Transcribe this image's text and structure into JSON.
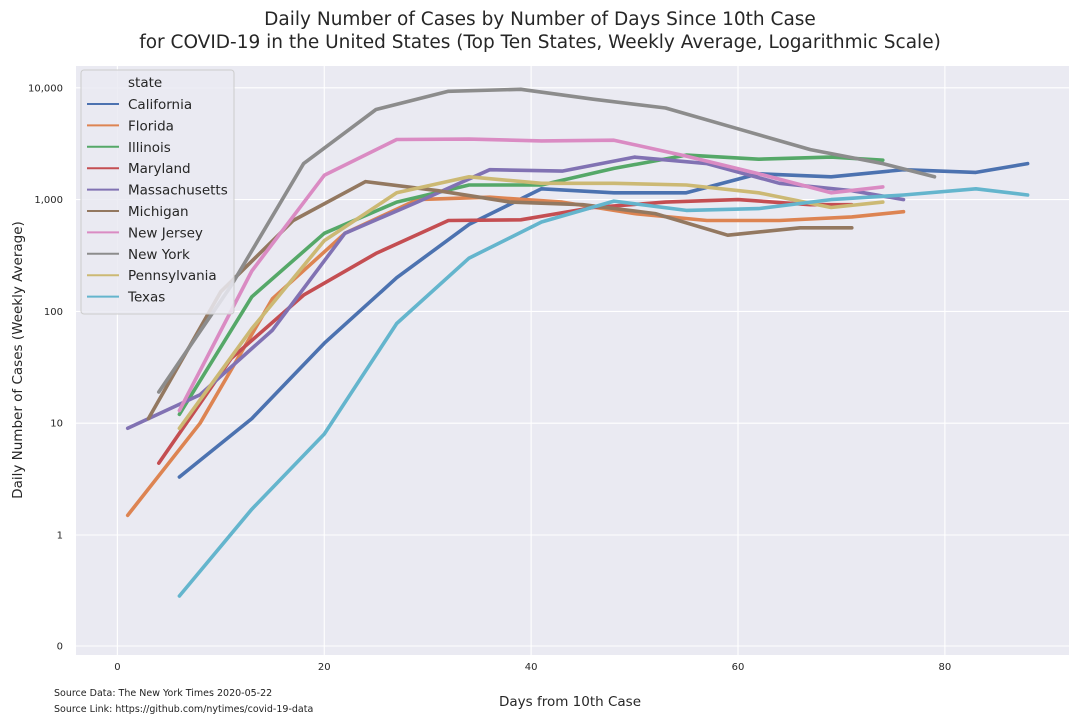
{
  "chart_data": {
    "type": "line",
    "title_line1": "Daily Number of Cases by Number of Days Since 10th Case",
    "title_line2": "for COVID-19 in the United States (Top Ten States, Weekly Average, Logarithmic Scale)",
    "xlabel": "Days from 10th Case",
    "ylabel": "Daily Number of Cases (Weekly Average)",
    "xlim": [
      -4,
      92
    ],
    "ylim": [
      0.08,
      16000
    ],
    "yscale": "symlog",
    "xticks": [
      0,
      20,
      40,
      60,
      80
    ],
    "yticks": [
      {
        "value": 0,
        "label": "0"
      },
      {
        "value": 1,
        "label": "1"
      },
      {
        "value": 10,
        "label": "10"
      },
      {
        "value": 100,
        "label": "100"
      },
      {
        "value": 1000,
        "label": "1,000"
      },
      {
        "value": 10000,
        "label": "10,000"
      }
    ],
    "legend_title": "state",
    "legend_position": "upper-left",
    "series": [
      {
        "name": "California",
        "color": "#4c72b0",
        "points": [
          [
            6,
            3.3
          ],
          [
            13,
            11
          ],
          [
            20,
            52
          ],
          [
            27,
            200
          ],
          [
            34,
            600
          ],
          [
            41,
            1250
          ],
          [
            48,
            1150
          ],
          [
            55,
            1150
          ],
          [
            62,
            1700
          ],
          [
            69,
            1600
          ],
          [
            76,
            1850
          ],
          [
            83,
            1750
          ],
          [
            88,
            2100
          ]
        ]
      },
      {
        "name": "Florida",
        "color": "#dd8452",
        "points": [
          [
            1,
            1.5
          ],
          [
            8,
            10
          ],
          [
            15,
            130
          ],
          [
            22,
            500
          ],
          [
            29,
            1000
          ],
          [
            36,
            1050
          ],
          [
            43,
            950
          ],
          [
            50,
            750
          ],
          [
            57,
            650
          ],
          [
            64,
            650
          ],
          [
            71,
            700
          ],
          [
            76,
            780
          ]
        ]
      },
      {
        "name": "Illinois",
        "color": "#55a868",
        "points": [
          [
            6,
            12
          ],
          [
            13,
            135
          ],
          [
            20,
            500
          ],
          [
            27,
            950
          ],
          [
            34,
            1350
          ],
          [
            41,
            1350
          ],
          [
            48,
            1900
          ],
          [
            55,
            2500
          ],
          [
            62,
            2300
          ],
          [
            69,
            2400
          ],
          [
            74,
            2250
          ]
        ]
      },
      {
        "name": "Maryland",
        "color": "#c44e52",
        "points": [
          [
            4,
            4.4
          ],
          [
            11,
            38
          ],
          [
            18,
            140
          ],
          [
            25,
            330
          ],
          [
            32,
            650
          ],
          [
            39,
            660
          ],
          [
            46,
            850
          ],
          [
            53,
            950
          ],
          [
            60,
            1000
          ],
          [
            67,
            900
          ],
          [
            71,
            900
          ]
        ]
      },
      {
        "name": "Massachusetts",
        "color": "#8172b3",
        "points": [
          [
            1,
            9
          ],
          [
            8,
            18
          ],
          [
            15,
            68
          ],
          [
            22,
            500
          ],
          [
            29,
            950
          ],
          [
            36,
            1850
          ],
          [
            43,
            1800
          ],
          [
            50,
            2400
          ],
          [
            57,
            2100
          ],
          [
            64,
            1400
          ],
          [
            71,
            1200
          ],
          [
            76,
            1000
          ]
        ]
      },
      {
        "name": "Michigan",
        "color": "#937860",
        "points": [
          [
            3,
            11
          ],
          [
            10,
            150
          ],
          [
            17,
            650
          ],
          [
            24,
            1450
          ],
          [
            31,
            1200
          ],
          [
            38,
            950
          ],
          [
            45,
            900
          ],
          [
            52,
            750
          ],
          [
            59,
            480
          ],
          [
            66,
            560
          ],
          [
            71,
            560
          ]
        ]
      },
      {
        "name": "New Jersey",
        "color": "#da8bc3",
        "points": [
          [
            6,
            13
          ],
          [
            13,
            230
          ],
          [
            20,
            1650
          ],
          [
            27,
            3450
          ],
          [
            34,
            3480
          ],
          [
            41,
            3350
          ],
          [
            48,
            3400
          ],
          [
            55,
            2450
          ],
          [
            62,
            1700
          ],
          [
            69,
            1150
          ],
          [
            74,
            1300
          ]
        ]
      },
      {
        "name": "New York",
        "color": "#8c8c8c",
        "points": [
          [
            4,
            19
          ],
          [
            11,
            170
          ],
          [
            18,
            2100
          ],
          [
            25,
            6400
          ],
          [
            32,
            9300
          ],
          [
            39,
            9700
          ],
          [
            46,
            7900
          ],
          [
            53,
            6600
          ],
          [
            60,
            4300
          ],
          [
            67,
            2800
          ],
          [
            74,
            2100
          ],
          [
            79,
            1600
          ]
        ]
      },
      {
        "name": "Pennsylvania",
        "color": "#ccb974",
        "points": [
          [
            6,
            9
          ],
          [
            13,
            70
          ],
          [
            20,
            430
          ],
          [
            27,
            1150
          ],
          [
            34,
            1600
          ],
          [
            41,
            1400
          ],
          [
            48,
            1400
          ],
          [
            55,
            1350
          ],
          [
            62,
            1150
          ],
          [
            69,
            850
          ],
          [
            74,
            950
          ]
        ]
      },
      {
        "name": "Texas",
        "color": "#64b5cd",
        "points": [
          [
            6,
            0.45
          ],
          [
            13,
            1.7
          ],
          [
            20,
            8
          ],
          [
            27,
            78
          ],
          [
            34,
            300
          ],
          [
            41,
            630
          ],
          [
            48,
            970
          ],
          [
            55,
            800
          ],
          [
            62,
            830
          ],
          [
            69,
            1000
          ],
          [
            76,
            1100
          ],
          [
            83,
            1250
          ],
          [
            88,
            1100
          ]
        ]
      }
    ]
  },
  "source": {
    "data_line": "Source Data: The New York Times 2020-05-22",
    "link_line": "Source Link: https://github.com/nytimes/covid-19-data"
  }
}
